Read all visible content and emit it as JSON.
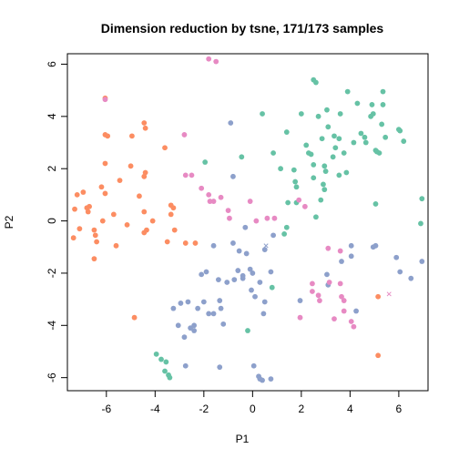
{
  "chart_data": {
    "type": "scatter",
    "title": "Dimension reduction by tsne, 171/173 samples",
    "xlabel": "P1",
    "ylabel": "P2",
    "xlim": [
      -7.6,
      7.2
    ],
    "ylim": [
      -6.5,
      6.4
    ],
    "xticks": [
      -6,
      -4,
      -2,
      0,
      2,
      4,
      6
    ],
    "yticks": [
      -6,
      -4,
      -2,
      0,
      2,
      4,
      6
    ],
    "grid": false,
    "legend": "none",
    "series": [
      {
        "color": "#fc8d62",
        "marker": "circle",
        "points": [
          [
            -7.2,
            1.0
          ],
          [
            -6.95,
            1.1
          ],
          [
            -6.7,
            0.55
          ],
          [
            -6.8,
            0.5
          ],
          [
            -6.75,
            0.35
          ],
          [
            -7.3,
            0.45
          ],
          [
            -7.35,
            -0.65
          ],
          [
            -7.1,
            -0.3
          ],
          [
            -6.5,
            -0.35
          ],
          [
            -6.45,
            -0.55
          ],
          [
            -6.4,
            -0.8
          ],
          [
            -6.15,
            0.0
          ],
          [
            -6.5,
            -1.45
          ],
          [
            -6.2,
            1.3
          ],
          [
            -6.05,
            1.05
          ],
          [
            -5.95,
            3.25
          ],
          [
            -6.05,
            3.3
          ],
          [
            -6.05,
            2.2
          ],
          [
            -5.7,
            0.25
          ],
          [
            -5.45,
            1.55
          ],
          [
            -5.6,
            -0.95
          ],
          [
            -5.15,
            -0.15
          ],
          [
            -5.0,
            2.1
          ],
          [
            -4.95,
            3.25
          ],
          [
            -4.85,
            -3.7
          ],
          [
            -4.65,
            0.95
          ],
          [
            -4.45,
            0.35
          ],
          [
            -4.4,
            3.55
          ],
          [
            -4.45,
            3.75
          ],
          [
            -4.45,
            1.7
          ],
          [
            -4.4,
            1.85
          ],
          [
            -4.35,
            -0.35
          ],
          [
            -4.45,
            -0.45
          ],
          [
            -4.1,
            0.0
          ],
          [
            -3.6,
            2.8
          ],
          [
            -3.5,
            -0.8
          ],
          [
            -3.35,
            0.25
          ],
          [
            -3.35,
            0.6
          ],
          [
            -3.2,
            -0.35
          ],
          [
            -2.75,
            -0.85
          ],
          [
            -3.25,
            0.5
          ],
          [
            -2.35,
            -0.85
          ],
          [
            -6.05,
            4.7
          ],
          [
            5.15,
            -2.9
          ],
          [
            5.15,
            -5.15
          ]
        ]
      },
      {
        "color": "#66c2a5",
        "marker": "circle",
        "points": [
          [
            1.15,
            2.0
          ],
          [
            1.75,
            1.5
          ],
          [
            1.8,
            1.3
          ],
          [
            1.8,
            0.7
          ],
          [
            1.45,
            0.7
          ],
          [
            0.85,
            2.6
          ],
          [
            1.4,
            3.4
          ],
          [
            1.7,
            1.95
          ],
          [
            2.0,
            4.1
          ],
          [
            2.2,
            2.9
          ],
          [
            2.3,
            2.6
          ],
          [
            2.4,
            2.55
          ],
          [
            2.5,
            5.4
          ],
          [
            2.6,
            5.3
          ],
          [
            2.5,
            2.15
          ],
          [
            2.5,
            1.65
          ],
          [
            2.7,
            4.0
          ],
          [
            2.85,
            3.15
          ],
          [
            2.95,
            2.1
          ],
          [
            3.0,
            1.9
          ],
          [
            2.9,
            1.4
          ],
          [
            2.95,
            1.2
          ],
          [
            2.8,
            0.8
          ],
          [
            2.6,
            0.15
          ],
          [
            3.05,
            4.25
          ],
          [
            3.1,
            3.6
          ],
          [
            3.35,
            3.25
          ],
          [
            3.4,
            2.8
          ],
          [
            3.3,
            2.45
          ],
          [
            3.55,
            3.15
          ],
          [
            3.55,
            1.75
          ],
          [
            3.6,
            4.1
          ],
          [
            3.75,
            2.6
          ],
          [
            3.9,
            4.95
          ],
          [
            3.85,
            1.85
          ],
          [
            4.15,
            3.0
          ],
          [
            4.3,
            4.5
          ],
          [
            4.45,
            3.35
          ],
          [
            4.6,
            3.2
          ],
          [
            4.65,
            3.0
          ],
          [
            4.85,
            4.0
          ],
          [
            4.9,
            4.45
          ],
          [
            4.95,
            4.1
          ],
          [
            5.05,
            2.7
          ],
          [
            5.1,
            2.65
          ],
          [
            5.2,
            2.6
          ],
          [
            5.35,
            4.95
          ],
          [
            5.35,
            4.45
          ],
          [
            5.3,
            3.7
          ],
          [
            5.45,
            3.2
          ],
          [
            6.05,
            3.45
          ],
          [
            6.0,
            3.5
          ],
          [
            6.2,
            3.05
          ],
          [
            0.4,
            4.1
          ],
          [
            -0.45,
            2.45
          ],
          [
            -1.95,
            2.25
          ],
          [
            0.8,
            -2.55
          ],
          [
            1.4,
            -0.25
          ],
          [
            1.3,
            -0.5
          ],
          [
            5.05,
            0.65
          ],
          [
            6.95,
            0.85
          ],
          [
            6.9,
            -0.1
          ],
          [
            -3.95,
            -5.1
          ],
          [
            -3.75,
            -5.3
          ],
          [
            -3.6,
            -5.75
          ],
          [
            -3.45,
            -5.9
          ],
          [
            -3.4,
            -6.0
          ],
          [
            -0.2,
            -4.2
          ],
          [
            -3.55,
            -5.4
          ]
        ]
      },
      {
        "color": "#8da0cb",
        "marker": "circle",
        "points": [
          [
            -0.9,
            3.75
          ],
          [
            -0.8,
            1.7
          ],
          [
            -1.6,
            -0.95
          ],
          [
            -0.8,
            -0.85
          ],
          [
            -0.55,
            -1.15
          ],
          [
            -0.6,
            -1.9
          ],
          [
            -0.4,
            -2.1
          ],
          [
            -0.4,
            -2.2
          ],
          [
            -0.75,
            -2.25
          ],
          [
            -1.05,
            -2.35
          ],
          [
            -1.4,
            -2.25
          ],
          [
            -1.9,
            -1.95
          ],
          [
            -2.1,
            -2.05
          ],
          [
            -2.0,
            -3.1
          ],
          [
            -2.25,
            -3.35
          ],
          [
            -2.4,
            -4.2
          ],
          [
            -2.55,
            -4.1
          ],
          [
            -2.4,
            -4.0
          ],
          [
            -2.65,
            -3.1
          ],
          [
            -2.95,
            -3.15
          ],
          [
            -3.25,
            -3.35
          ],
          [
            -2.8,
            -4.45
          ],
          [
            -2.75,
            -5.55
          ],
          [
            -3.05,
            -4.0
          ],
          [
            -1.8,
            -3.55
          ],
          [
            -1.6,
            -3.55
          ],
          [
            -1.35,
            -3.05
          ],
          [
            -1.3,
            -3.35
          ],
          [
            -1.2,
            -3.95
          ],
          [
            -1.35,
            -5.6
          ],
          [
            -0.3,
            -0.25
          ],
          [
            -0.25,
            -1.25
          ],
          [
            -0.1,
            -1.85
          ],
          [
            0.0,
            -2.0
          ],
          [
            0.1,
            -2.9
          ],
          [
            -0.05,
            -2.65
          ],
          [
            0.3,
            -2.35
          ],
          [
            0.45,
            -3.55
          ],
          [
            0.5,
            -3.1
          ],
          [
            0.75,
            -1.95
          ],
          [
            0.85,
            -0.55
          ],
          [
            0.5,
            -1.1
          ],
          [
            0.05,
            -5.55
          ],
          [
            0.25,
            -5.95
          ],
          [
            0.3,
            -6.05
          ],
          [
            0.4,
            -6.1
          ],
          [
            0.75,
            -6.05
          ],
          [
            3.05,
            -2.05
          ],
          [
            3.1,
            -2.45
          ],
          [
            3.65,
            -1.55
          ],
          [
            4.05,
            -1.35
          ],
          [
            4.05,
            -0.95
          ],
          [
            4.25,
            -3.45
          ],
          [
            4.95,
            -1.0
          ],
          [
            5.05,
            -0.95
          ],
          [
            5.9,
            -1.4
          ],
          [
            6.05,
            -1.95
          ],
          [
            6.5,
            -2.2
          ],
          [
            6.95,
            -1.55
          ],
          [
            1.95,
            -3.05
          ]
        ]
      },
      {
        "color": "#e78ac3",
        "marker": "circle",
        "points": [
          [
            -6.05,
            4.65
          ],
          [
            -1.8,
            6.2
          ],
          [
            -1.5,
            6.1
          ],
          [
            -2.8,
            3.3
          ],
          [
            -2.75,
            1.75
          ],
          [
            -2.5,
            1.75
          ],
          [
            -2.1,
            1.25
          ],
          [
            -1.8,
            1.0
          ],
          [
            -1.75,
            0.75
          ],
          [
            -1.6,
            0.75
          ],
          [
            -1.3,
            0.9
          ],
          [
            -1.0,
            0.4
          ],
          [
            -0.95,
            0.1
          ],
          [
            -0.1,
            0.75
          ],
          [
            0.15,
            0.0
          ],
          [
            0.6,
            0.1
          ],
          [
            0.9,
            0.1
          ],
          [
            1.9,
            0.8
          ],
          [
            2.15,
            0.55
          ],
          [
            3.1,
            -1.05
          ],
          [
            3.6,
            -1.15
          ],
          [
            2.45,
            -2.4
          ],
          [
            2.7,
            -2.85
          ],
          [
            2.75,
            -3.05
          ],
          [
            3.15,
            -2.35
          ],
          [
            3.6,
            -2.4
          ],
          [
            3.65,
            -2.9
          ],
          [
            3.75,
            -3.05
          ],
          [
            3.75,
            -3.45
          ],
          [
            4.05,
            -3.85
          ],
          [
            4.15,
            -4.05
          ],
          [
            3.35,
            -3.75
          ],
          [
            1.95,
            -3.7
          ],
          [
            2.45,
            -2.7
          ]
        ]
      },
      {
        "color": "#8da0cb",
        "marker": "x",
        "points": [
          [
            0.55,
            -0.95
          ]
        ]
      },
      {
        "color": "#e78ac3",
        "marker": "x",
        "points": [
          [
            5.6,
            -2.8
          ]
        ]
      }
    ]
  }
}
